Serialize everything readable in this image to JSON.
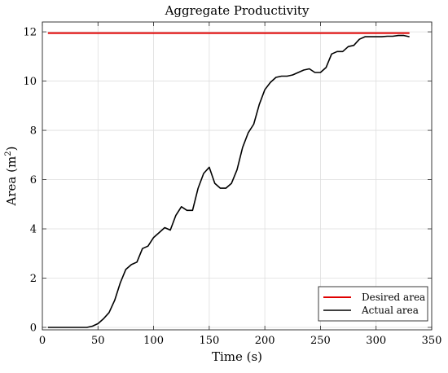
{
  "chart_data": {
    "type": "line",
    "title": "Aggregate Productivity",
    "xlabel": "Time (s)",
    "ylabel": "Area (m",
    "ylabel_superscript": "2",
    "ylabel_suffix": ")",
    "xlim": [
      0,
      350
    ],
    "ylim": [
      -0.1,
      12.4
    ],
    "x_ticks": [
      0,
      50,
      100,
      150,
      200,
      250,
      300,
      350
    ],
    "y_ticks": [
      0,
      2,
      4,
      6,
      8,
      10,
      12
    ],
    "x_tick_labels": [
      "0",
      "50",
      "100",
      "150",
      "200",
      "250",
      "300",
      "350"
    ],
    "y_tick_labels": [
      "0",
      "2",
      "4",
      "6",
      "8",
      "10",
      "12"
    ],
    "grid": true,
    "legend_position": "bottom-right",
    "series": [
      {
        "name": "Desired area",
        "color": "#e00000",
        "x": [
          5,
          330
        ],
        "y": [
          11.95,
          11.95
        ]
      },
      {
        "name": "Actual area",
        "color": "#000000",
        "x": [
          5,
          10,
          20,
          30,
          40,
          45,
          50,
          55,
          60,
          65,
          70,
          75,
          80,
          85,
          90,
          95,
          100,
          105,
          110,
          115,
          120,
          125,
          130,
          135,
          140,
          145,
          150,
          155,
          160,
          165,
          170,
          175,
          180,
          185,
          190,
          195,
          200,
          205,
          210,
          215,
          220,
          225,
          230,
          235,
          240,
          245,
          250,
          255,
          260,
          265,
          270,
          275,
          280,
          285,
          290,
          295,
          300,
          305,
          310,
          315,
          320,
          325,
          330
        ],
        "y": [
          0.0,
          0.0,
          0.0,
          0.0,
          0.0,
          0.05,
          0.15,
          0.35,
          0.6,
          1.1,
          1.8,
          2.35,
          2.55,
          2.65,
          3.2,
          3.3,
          3.65,
          3.85,
          4.05,
          3.95,
          4.55,
          4.9,
          4.75,
          4.75,
          5.65,
          6.25,
          6.5,
          5.85,
          5.65,
          5.65,
          5.85,
          6.4,
          7.3,
          7.9,
          8.25,
          9.05,
          9.65,
          9.95,
          10.15,
          10.2,
          10.2,
          10.25,
          10.35,
          10.45,
          10.5,
          10.35,
          10.35,
          10.55,
          11.1,
          11.2,
          11.2,
          11.4,
          11.45,
          11.7,
          11.8,
          11.8,
          11.8,
          11.8,
          11.82,
          11.82,
          11.85,
          11.85,
          11.8
        ]
      }
    ]
  }
}
